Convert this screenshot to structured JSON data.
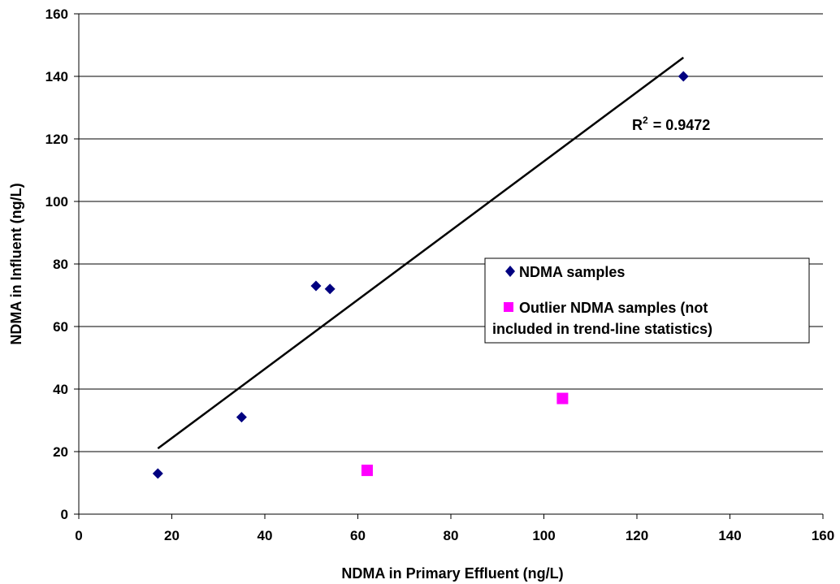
{
  "chart_data": {
    "type": "scatter",
    "title": "",
    "xlabel": "NDMA in Primary Effluent (ng/L)",
    "ylabel": "NDMA in Influent (ng/L)",
    "xlim": [
      0,
      160
    ],
    "ylim": [
      0,
      160
    ],
    "x_ticks": [
      "0",
      "20",
      "40",
      "60",
      "80",
      "100",
      "120",
      "140",
      "160"
    ],
    "y_ticks": [
      "0",
      "20",
      "40",
      "60",
      "80",
      "100",
      "120",
      "140",
      "160"
    ],
    "grid": "horizontal",
    "legend_position": "right",
    "series": [
      {
        "name": "NDMA samples",
        "marker": "diamond",
        "color": "#000080",
        "points": [
          {
            "x": 17,
            "y": 13
          },
          {
            "x": 35,
            "y": 31
          },
          {
            "x": 51,
            "y": 73
          },
          {
            "x": 54,
            "y": 72
          },
          {
            "x": 130,
            "y": 140
          }
        ]
      },
      {
        "name": "Outlier NDMA samples (not included in trend-line statistics)",
        "legend_lines": [
          "Outlier NDMA samples (not",
          "included in trend-line statistics)"
        ],
        "marker": "square",
        "color": "#FF00FF",
        "points": [
          {
            "x": 62,
            "y": 14
          },
          {
            "x": 104,
            "y": 37
          }
        ]
      }
    ],
    "trendline": {
      "type": "linear",
      "x_range": [
        17,
        130
      ],
      "y_at_range": [
        21,
        146
      ],
      "color": "#000000",
      "r2_prefix": "R",
      "r2_superscript": "2",
      "r2_value": "= 0.9472"
    }
  }
}
